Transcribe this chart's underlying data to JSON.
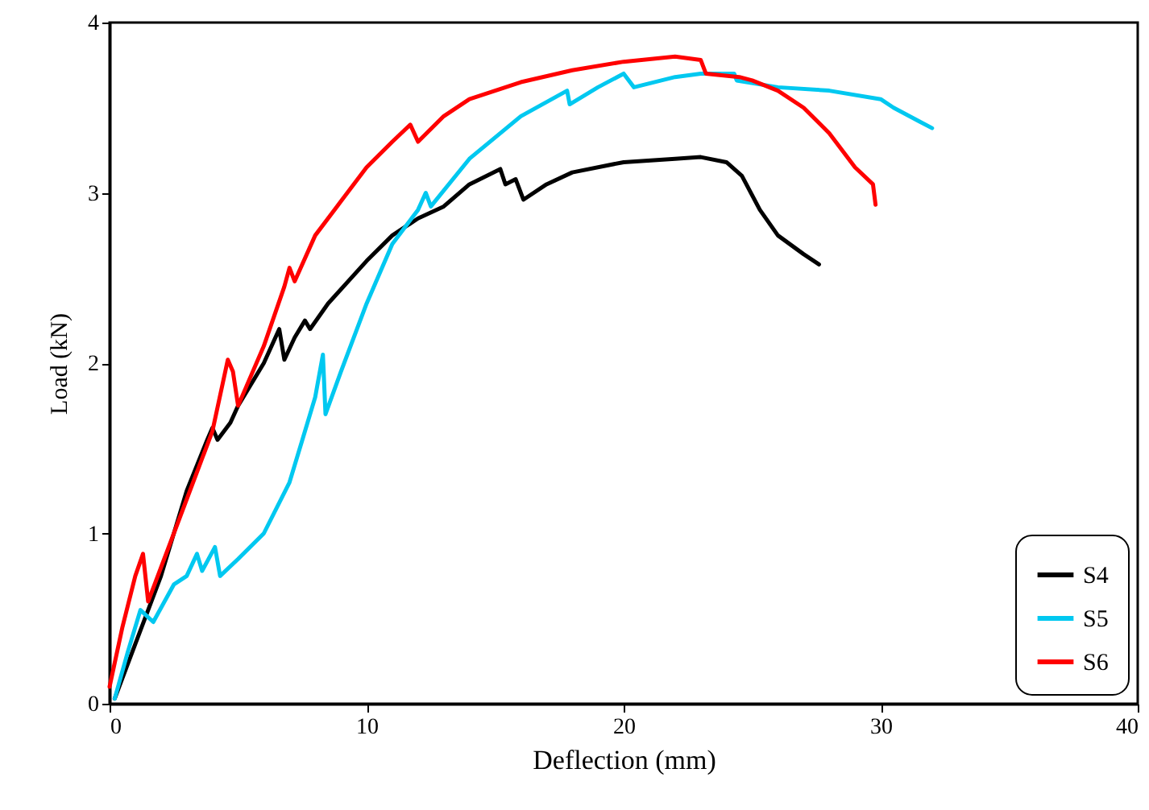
{
  "chart_data": {
    "type": "line",
    "xlabel": "Deflection (mm)",
    "ylabel": "Load (kN)",
    "xlim": [
      0,
      40
    ],
    "xticks": [
      0,
      10,
      20,
      30,
      40
    ],
    "ylim": [
      0,
      4
    ],
    "yticks": [
      0,
      1,
      2,
      3,
      4
    ],
    "grid": false,
    "legend": "bottom right",
    "marker": "none",
    "line_style": "solid",
    "series": [
      {
        "name": "S4",
        "color": "#000000",
        "x": [
          0.2,
          1,
          2,
          3,
          3.8,
          4,
          4.2,
          4.7,
          5,
          6,
          6.6,
          6.8,
          7.2,
          7.6,
          7.8,
          8.5,
          10,
          11,
          12,
          13,
          14,
          15.2,
          15.4,
          15.8,
          16.1,
          17,
          18,
          20,
          22,
          23,
          24,
          24.6,
          25.3,
          26,
          27,
          27.6
        ],
        "values": [
          0.03,
          0.35,
          0.75,
          1.25,
          1.55,
          1.62,
          1.55,
          1.65,
          1.75,
          2.0,
          2.2,
          2.02,
          2.15,
          2.25,
          2.2,
          2.35,
          2.6,
          2.75,
          2.85,
          2.92,
          3.05,
          3.14,
          3.05,
          3.08,
          2.96,
          3.05,
          3.12,
          3.18,
          3.2,
          3.21,
          3.18,
          3.1,
          2.9,
          2.75,
          2.64,
          2.58
        ]
      },
      {
        "name": "S5",
        "color": "#00c8f0",
        "x": [
          0.2,
          0.7,
          1.2,
          1.7,
          2.5,
          3,
          3.4,
          3.6,
          4.1,
          4.3,
          5,
          6,
          7,
          7.5,
          8,
          8.3,
          8.4,
          9,
          10,
          11,
          12,
          12.3,
          12.5,
          14,
          16,
          17.8,
          17.9,
          19,
          20,
          20.4,
          22,
          23,
          24.3,
          24.4,
          26,
          28,
          30,
          30.5,
          31.5,
          32
        ],
        "values": [
          0.03,
          0.3,
          0.55,
          0.48,
          0.7,
          0.75,
          0.88,
          0.78,
          0.92,
          0.75,
          0.85,
          1.0,
          1.3,
          1.55,
          1.8,
          2.05,
          1.7,
          1.95,
          2.35,
          2.7,
          2.9,
          3.0,
          2.92,
          3.2,
          3.45,
          3.6,
          3.52,
          3.62,
          3.7,
          3.62,
          3.68,
          3.7,
          3.7,
          3.66,
          3.62,
          3.6,
          3.55,
          3.5,
          3.42,
          3.38
        ]
      },
      {
        "name": "S6",
        "color": "#ff0000",
        "x": [
          0,
          0.5,
          1,
          1.3,
          1.5,
          2.5,
          3.5,
          4,
          4.6,
          4.8,
          5,
          6,
          6.8,
          7,
          7.2,
          8,
          9,
          10,
          11,
          11.7,
          12,
          13,
          14,
          15,
          16,
          18,
          20,
          22,
          23,
          23.2,
          24.5,
          25,
          26,
          27,
          28,
          29,
          29.7,
          29.8
        ],
        "values": [
          0.1,
          0.45,
          0.75,
          0.88,
          0.6,
          1.0,
          1.4,
          1.6,
          2.02,
          1.95,
          1.75,
          2.1,
          2.45,
          2.56,
          2.48,
          2.75,
          2.95,
          3.15,
          3.3,
          3.4,
          3.3,
          3.45,
          3.55,
          3.6,
          3.65,
          3.72,
          3.77,
          3.8,
          3.78,
          3.7,
          3.68,
          3.66,
          3.6,
          3.5,
          3.35,
          3.15,
          3.05,
          2.93
        ]
      }
    ]
  }
}
